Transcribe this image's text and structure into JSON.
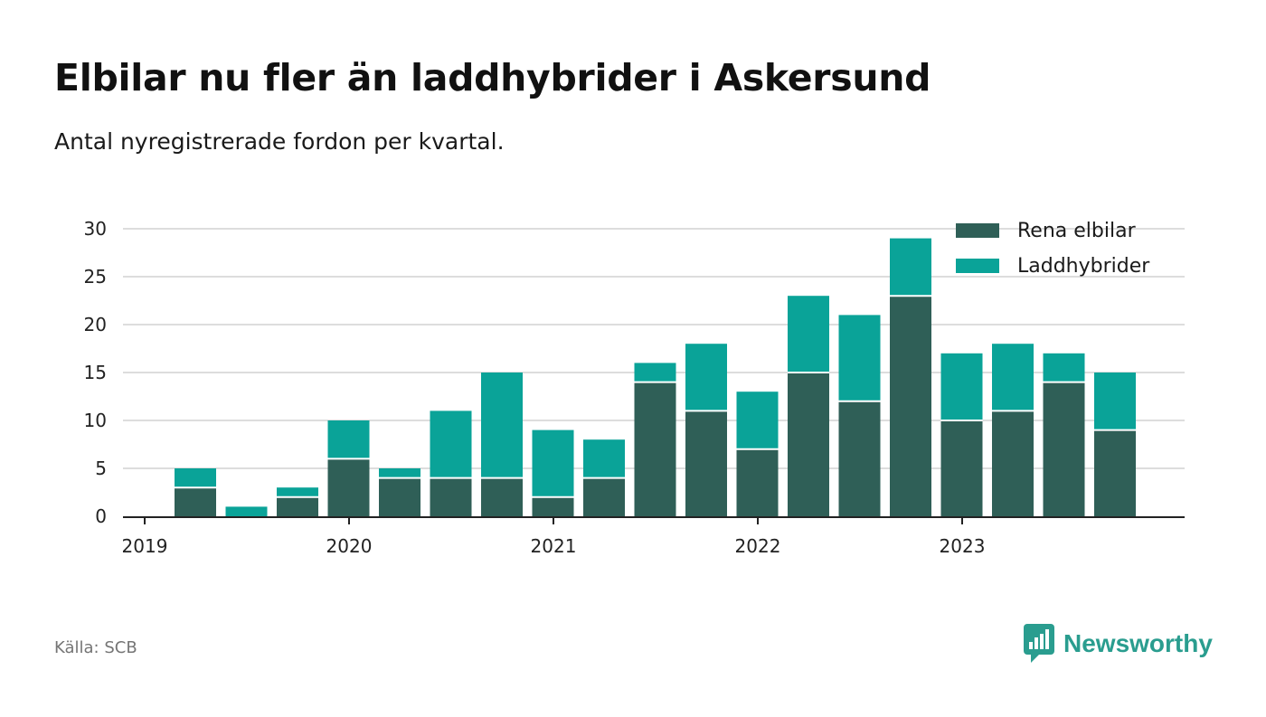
{
  "header": {
    "title": "Elbilar nu fler än laddhybrider i Askersund",
    "subtitle": "Antal nyregistrerade fordon per kvartal."
  },
  "colors": {
    "rena_elbilar": "#2f5f57",
    "laddhybrider": "#0aa398",
    "grid": "#dddddd",
    "axis": "#222222",
    "brand": "#2a9d8f"
  },
  "chart_data": {
    "type": "bar",
    "stacked": true,
    "title": "Elbilar nu fler än laddhybrider i Askersund",
    "subtitle": "Antal nyregistrerade fordon per kvartal.",
    "xlabel": "",
    "ylabel": "",
    "ylim": [
      0,
      30
    ],
    "yticks": [
      0,
      5,
      10,
      15,
      20,
      25,
      30
    ],
    "grid": true,
    "legend_position": "top-right",
    "categories": [
      "2019 Q1",
      "2019 Q2",
      "2019 Q3",
      "2019 Q4",
      "2020 Q1",
      "2020 Q2",
      "2020 Q3",
      "2020 Q4",
      "2021 Q1",
      "2021 Q2",
      "2021 Q3",
      "2021 Q4",
      "2022 Q1",
      "2022 Q2",
      "2022 Q3",
      "2022 Q4",
      "2023 Q1",
      "2023 Q2",
      "2023 Q3",
      "2023 Q4"
    ],
    "x_tick_labels": [
      {
        "label": "2019",
        "index": 0
      },
      {
        "label": "2020",
        "index": 4
      },
      {
        "label": "2021",
        "index": 8
      },
      {
        "label": "2022",
        "index": 12
      },
      {
        "label": "2023",
        "index": 16
      }
    ],
    "series": [
      {
        "name": "Rena elbilar",
        "color": "#2f5f57",
        "values": [
          0,
          3,
          0,
          2,
          6,
          4,
          4,
          4,
          2,
          4,
          14,
          11,
          7,
          15,
          12,
          23,
          10,
          11,
          14,
          9
        ]
      },
      {
        "name": "Laddhybrider",
        "color": "#0aa398",
        "values": [
          0,
          2,
          1,
          1,
          4,
          1,
          7,
          11,
          7,
          4,
          2,
          7,
          6,
          8,
          9,
          6,
          7,
          7,
          3,
          6
        ]
      }
    ]
  },
  "footer": {
    "source": "Källa: SCB",
    "brand": "Newsworthy",
    "brand_icon": "newsworthy-logo-icon"
  }
}
